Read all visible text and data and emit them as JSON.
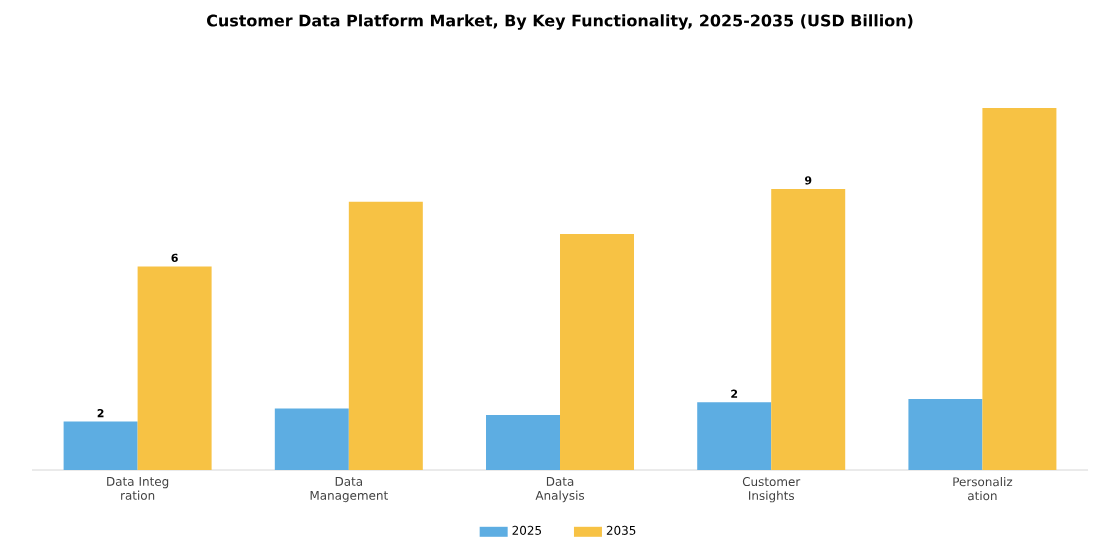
{
  "chart_data": {
    "type": "bar",
    "title": "Customer Data Platform Market, By Key Functionality, 2025-2035 (USD Billion)",
    "categories": [
      "Data Integ ration",
      "Data Management",
      "Data Analysis",
      "Customer Insights",
      "Personaliz ation"
    ],
    "series": [
      {
        "name": "2025",
        "color": "#5dade2",
        "values": [
          1.5,
          1.9,
          1.7,
          2.1,
          2.2
        ],
        "value_labels": [
          "2",
          null,
          null,
          "2",
          null
        ]
      },
      {
        "name": "2035",
        "color": "#f7c244",
        "values": [
          6.3,
          8.3,
          7.3,
          8.7,
          11.2
        ],
        "value_labels": [
          "6",
          null,
          null,
          "9",
          null
        ]
      }
    ],
    "legend": "bottom"
  }
}
